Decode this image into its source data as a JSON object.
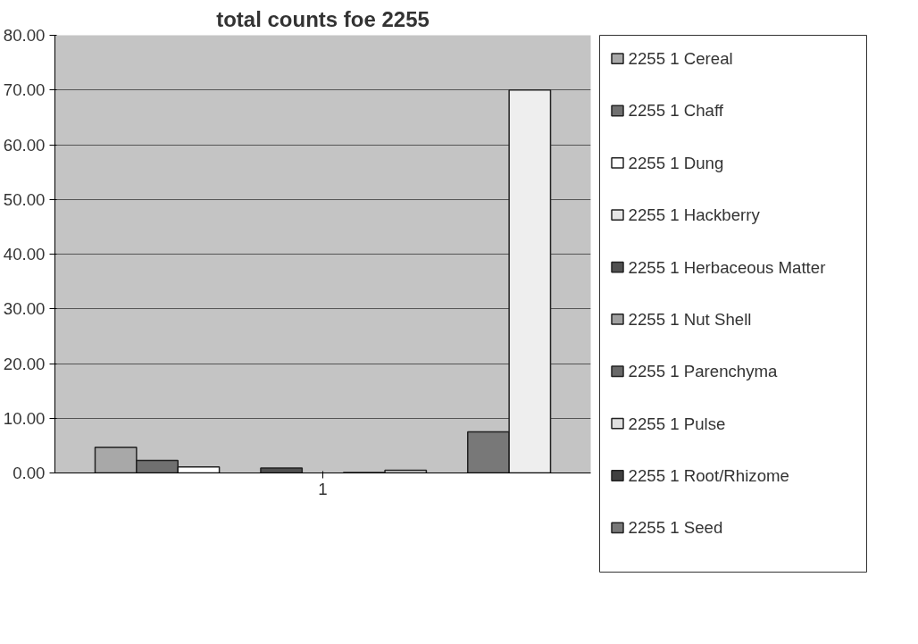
{
  "chart_data": {
    "type": "bar",
    "title": "total counts foe 2255",
    "categories": [
      "1"
    ],
    "series": [
      {
        "name": "2255 1 Cereal",
        "color": "#a8a8a8",
        "values": [
          4.7
        ]
      },
      {
        "name": "2255 1 Chaff",
        "color": "#707070",
        "values": [
          2.3
        ]
      },
      {
        "name": "2255 1 Dung",
        "color": "#ffffff",
        "values": [
          1.1
        ]
      },
      {
        "name": "2255 1 Hackberry",
        "color": "#e6e6e6",
        "values": [
          null
        ]
      },
      {
        "name": "2255 1 Herbaceous Matter",
        "color": "#505050",
        "values": [
          0.9
        ]
      },
      {
        "name": "2255 1 Nut Shell",
        "color": "#a0a0a0",
        "values": [
          null
        ]
      },
      {
        "name": "2255 1 Parenchyma",
        "color": "#686868",
        "values": [
          0.1
        ]
      },
      {
        "name": "2255 1 Pulse",
        "color": "#e0e0e0",
        "values": [
          0.5
        ]
      },
      {
        "name": "2255 1 Root/Rhizome",
        "color": "#404040",
        "values": [
          null
        ]
      },
      {
        "name": "2255 1 Seed",
        "color": "#787878",
        "values": [
          7.5
        ]
      },
      {
        "color": "#eeeeee",
        "values": [
          70.0
        ]
      }
    ],
    "ylim": [
      0,
      80
    ],
    "yticks": [
      {
        "value": 0,
        "label": "0.00"
      },
      {
        "value": 10,
        "label": "10.00"
      },
      {
        "value": 20,
        "label": "20.00"
      },
      {
        "value": 30,
        "label": "30.00"
      },
      {
        "value": 40,
        "label": "40.00"
      },
      {
        "value": 50,
        "label": "50.00"
      },
      {
        "value": 60,
        "label": "60.00"
      },
      {
        "value": 70,
        "label": "70.00"
      },
      {
        "value": 80,
        "label": "80.00"
      }
    ],
    "grid": "y",
    "legend": "right"
  }
}
